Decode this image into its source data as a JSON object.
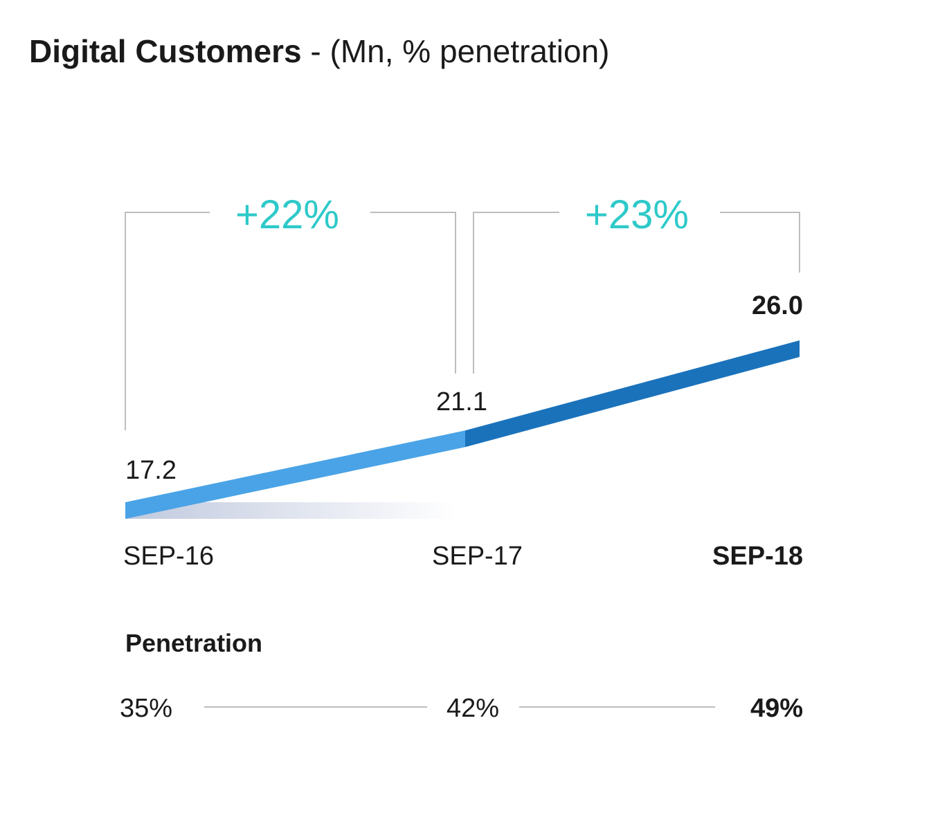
{
  "title": {
    "main": "Digital Customers",
    "suffix": " - (Mn, % penetration)"
  },
  "colors": {
    "line_first": "#4aa3e6",
    "line_second": "#1a72bb",
    "growth_text": "#2ec9c9",
    "bracket": "#bdbdbd",
    "text": "#1a1a1a",
    "shadow": "#b9c3da"
  },
  "chart_data": {
    "type": "line",
    "title": "Digital Customers - (Mn, % penetration)",
    "categories": [
      "SEP-16",
      "SEP-17",
      "SEP-18"
    ],
    "series": [
      {
        "values": [
          17.2,
          21.1,
          26.0
        ]
      }
    ],
    "value_labels": [
      "17.2",
      "21.1",
      "26.0"
    ],
    "growth": [
      "+22%",
      "+23%"
    ],
    "penetration": {
      "label": "Penetration",
      "values": [
        35,
        42,
        49
      ],
      "labels": [
        "35%",
        "42%",
        "49%"
      ]
    },
    "highlight_last": true
  }
}
